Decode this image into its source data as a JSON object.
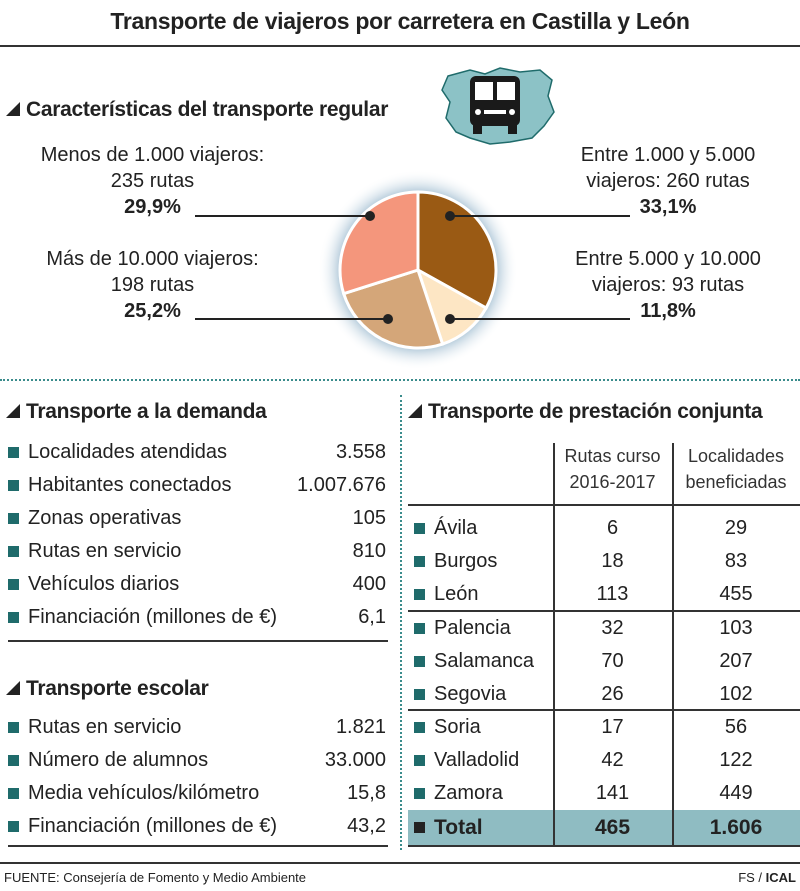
{
  "title": "Transporte de viajeros por carretera en Castilla y León",
  "regular": {
    "heading": "Características del transporte regular",
    "labels": [
      {
        "line1": "Menos de 1.000 viajeros:",
        "line2": "235 rutas",
        "pct": "29,9%"
      },
      {
        "line1": "Entre 1.000 y 5.000",
        "line2": "viajeros: 260 rutas",
        "pct": "33,1%"
      },
      {
        "line1": "Más de 10.000 viajeros:",
        "line2": "198 rutas",
        "pct": "25,2%"
      },
      {
        "line1": "Entre 5.000 y 10.000",
        "line2": "viajeros: 93 rutas",
        "pct": "11,8%"
      }
    ]
  },
  "chart_data": {
    "type": "pie",
    "title": "Características del transporte regular",
    "slices": [
      {
        "label": "Entre 1.000 y 5.000 viajeros",
        "routes": 260,
        "value": 33.1,
        "color": "#9a5a14"
      },
      {
        "label": "Entre 5.000 y 10.000 viajeros",
        "routes": 93,
        "value": 11.8,
        "color": "#fde6c4"
      },
      {
        "label": "Más de 10.000 viajeros",
        "routes": 198,
        "value": 25.2,
        "color": "#d4a679"
      },
      {
        "label": "Menos de 1.000 viajeros",
        "routes": 235,
        "value": 29.9,
        "color": "#f4967c"
      }
    ]
  },
  "demanda": {
    "heading": "Transporte a la demanda",
    "rows": [
      {
        "name": "Localidades atendidas",
        "value": "3.558"
      },
      {
        "name": "Habitantes conectados",
        "value": "1.007.676"
      },
      {
        "name": "Zonas operativas",
        "value": "105"
      },
      {
        "name": "Rutas en servicio",
        "value": "810"
      },
      {
        "name": "Vehículos diarios",
        "value": "400"
      },
      {
        "name": "Financiación (millones de €)",
        "value": "6,1"
      }
    ]
  },
  "escolar": {
    "heading": "Transporte escolar",
    "rows": [
      {
        "name": "Rutas en servicio",
        "value": "1.821"
      },
      {
        "name": "Número de alumnos",
        "value": "33.000"
      },
      {
        "name": "Media vehículos/kilómetro",
        "value": "15,8"
      },
      {
        "name": "Financiación (millones de €)",
        "value": "43,2"
      }
    ]
  },
  "conjunta": {
    "heading": "Transporte de prestación conjunta",
    "col1": {
      "line1": "Rutas curso",
      "line2": "2016-2017"
    },
    "col2": {
      "line1": "Localidades",
      "line2": "beneficiadas"
    },
    "rows": [
      {
        "name": "Ávila",
        "rutas": "6",
        "localidades": "29"
      },
      {
        "name": "Burgos",
        "rutas": "18",
        "localidades": "83"
      },
      {
        "name": "León",
        "rutas": "113",
        "localidades": "455"
      },
      {
        "name": "Palencia",
        "rutas": "32",
        "localidades": "103"
      },
      {
        "name": "Salamanca",
        "rutas": "70",
        "localidades": "207"
      },
      {
        "name": "Segovia",
        "rutas": "26",
        "localidades": "102"
      },
      {
        "name": "Soria",
        "rutas": "17",
        "localidades": "56"
      },
      {
        "name": "Valladolid",
        "rutas": "42",
        "localidades": "122"
      },
      {
        "name": "Zamora",
        "rutas": "141",
        "localidades": "449"
      }
    ],
    "total": {
      "name": "Total",
      "rutas": "465",
      "localidades": "1.606"
    }
  },
  "footer": {
    "source": "FUENTE: Consejería de Fomento y Medio Ambiente",
    "credit_a": "FS / ",
    "credit_b": "ICAL"
  }
}
